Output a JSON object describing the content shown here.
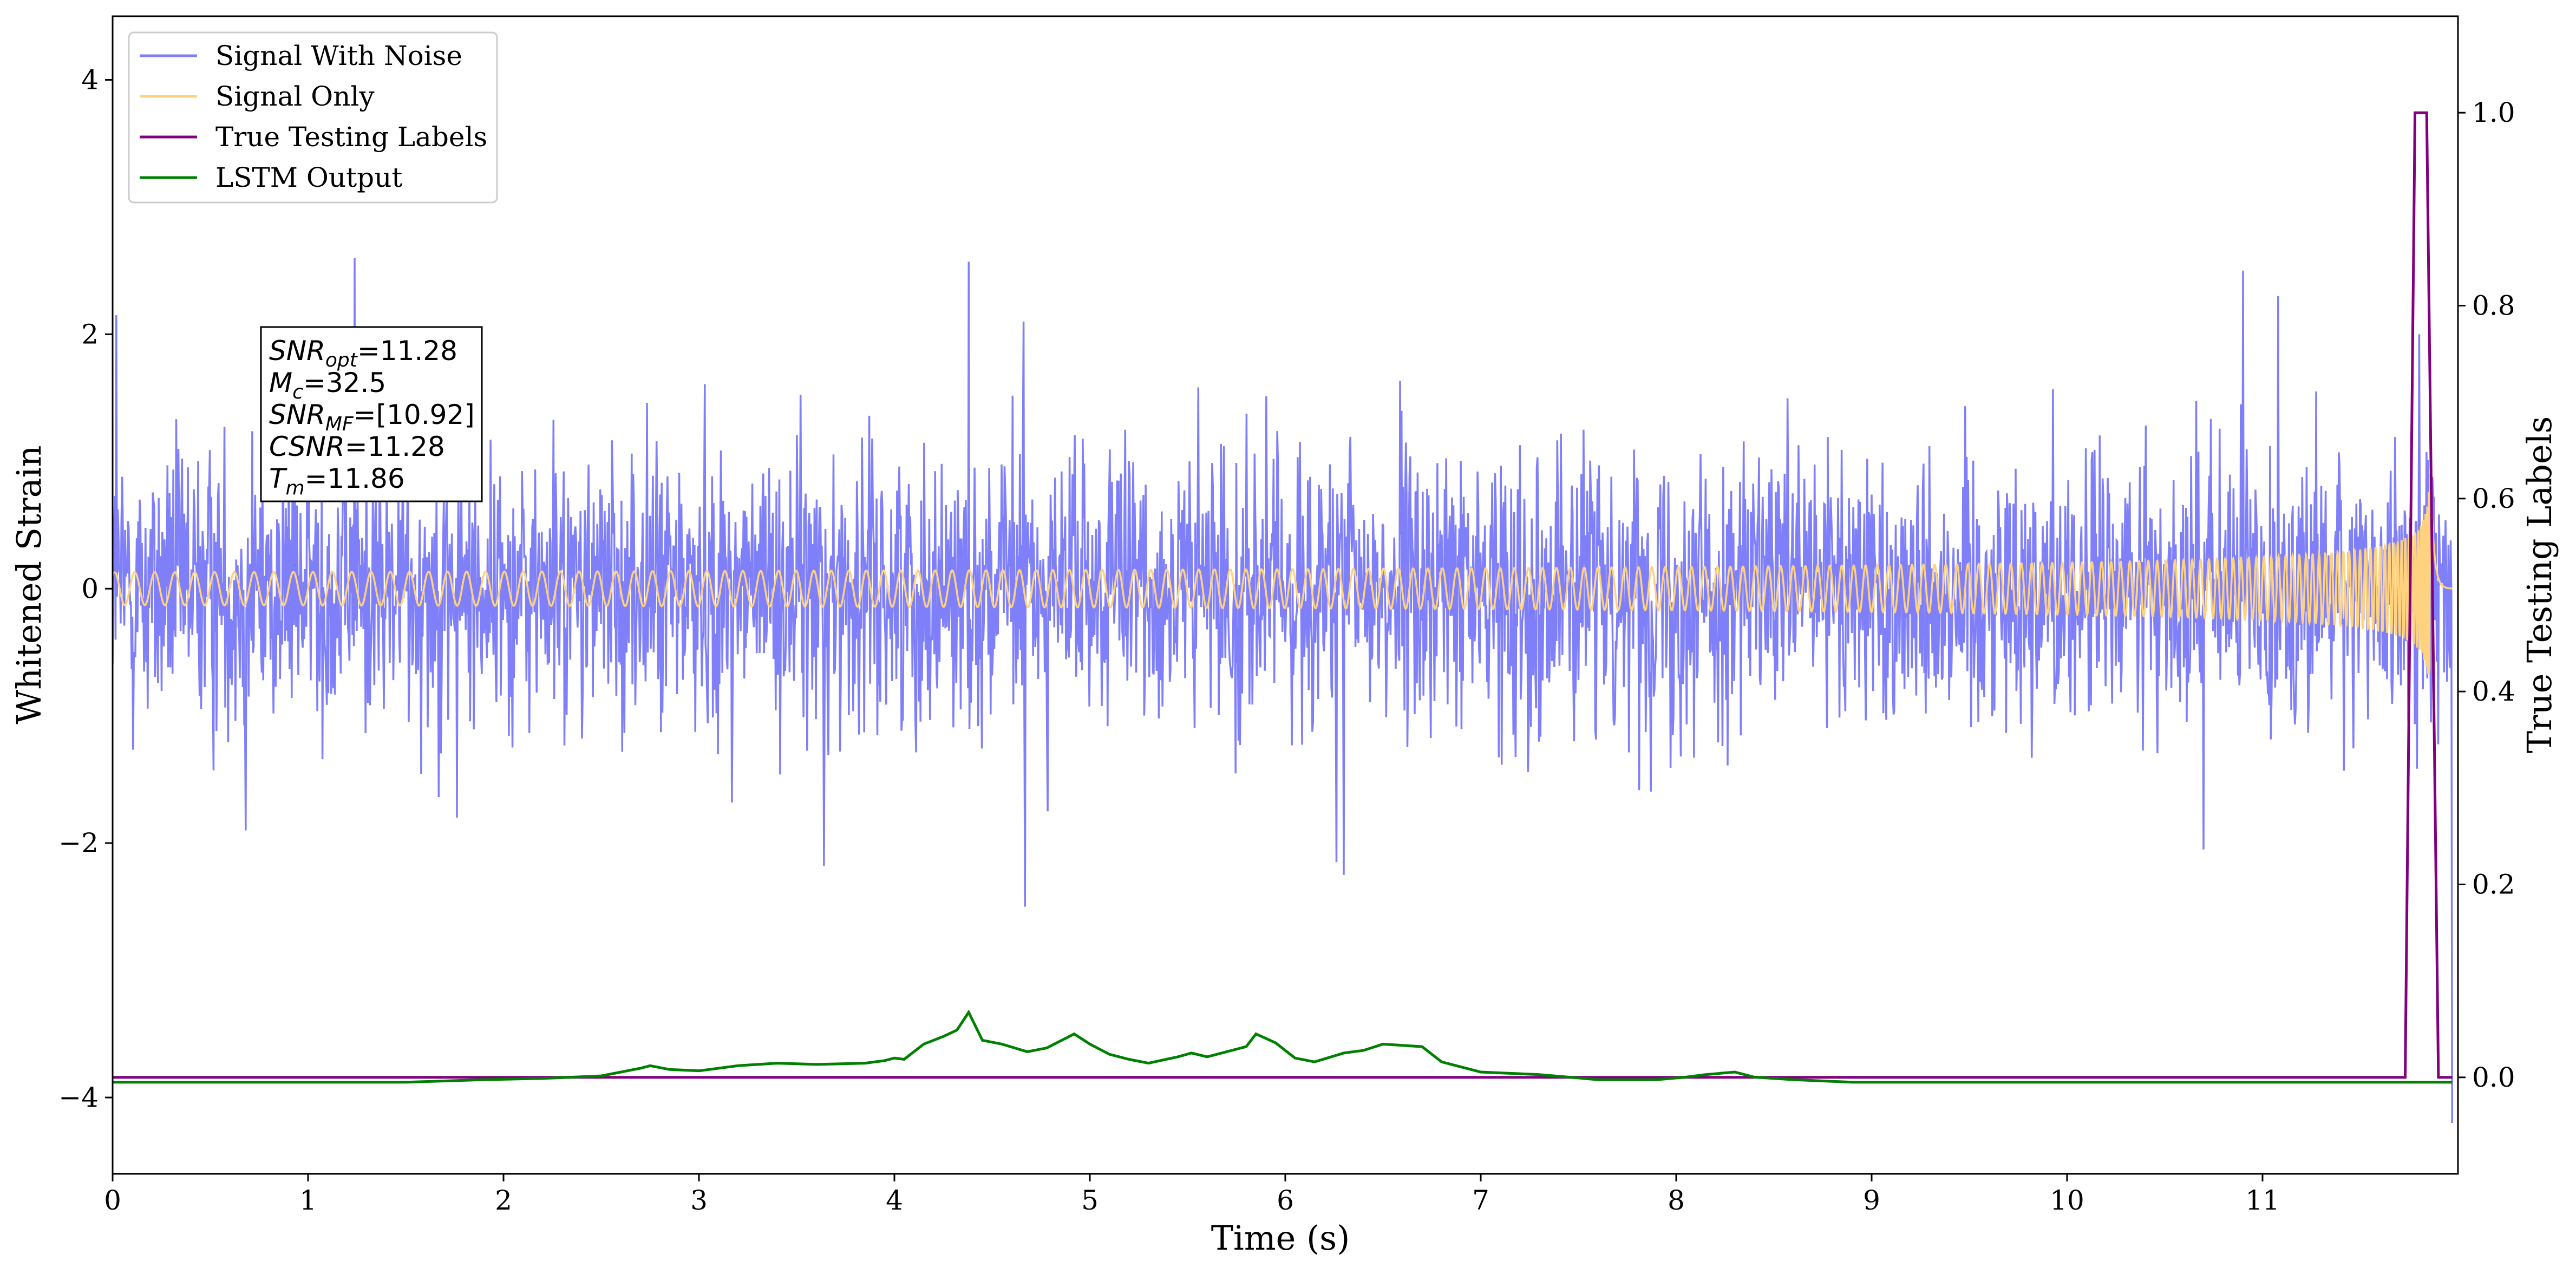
{
  "chart_data": {
    "type": "line",
    "x": {
      "label": "Time (s)",
      "range": [
        0,
        12
      ],
      "ticks": [
        0,
        1,
        2,
        3,
        4,
        5,
        6,
        7,
        8,
        9,
        10,
        11
      ],
      "tick_labels": [
        "0",
        "1",
        "2",
        "3",
        "4",
        "5",
        "6",
        "7",
        "8",
        "9",
        "10",
        "11"
      ]
    },
    "y_left": {
      "label": "Whitened Strain",
      "range": [
        -4.6,
        4.5
      ],
      "ticks": [
        -4,
        -2,
        0,
        2,
        4
      ],
      "tick_labels": [
        "−4",
        "−2",
        "0",
        "2",
        "4"
      ]
    },
    "y_right": {
      "label": "True Testing Labels",
      "range": [
        -0.1,
        1.1
      ],
      "ticks": [
        0.0,
        0.2,
        0.4,
        0.6,
        0.8,
        1.0
      ],
      "tick_labels": [
        "0.0",
        "0.2",
        "0.4",
        "0.6",
        "0.8",
        "1.0"
      ]
    },
    "legend": {
      "placement": "upper-left",
      "entries": [
        {
          "label": "Signal With Noise",
          "color": "#7f7ffa"
        },
        {
          "label": "Signal Only",
          "color": "#ffd27f"
        },
        {
          "label": "True Testing Labels",
          "color": "#800080"
        },
        {
          "label": "LSTM Output",
          "color": "#008000"
        }
      ]
    },
    "annotation": {
      "lines": [
        {
          "sym": "SNR",
          "sub": "opt",
          "rest": "=11.28"
        },
        {
          "sym": "M",
          "sub": "c",
          "rest": "=32.5"
        },
        {
          "sym": "SNR",
          "sub": "MF",
          "rest": "=[10.92]"
        },
        {
          "sym": "CSNR",
          "sub": "",
          "rest": "=11.28"
        },
        {
          "sym": "T",
          "sub": "m",
          "rest": "=11.86"
        }
      ]
    },
    "series": [
      {
        "name": "Signal With Noise",
        "axis": "left",
        "color": "#7f7ffa",
        "noise_sigma": 0.55,
        "x_end": 11.97,
        "peaks_high": [
          [
            0.02,
            2.15
          ],
          [
            1.24,
            2.6
          ],
          [
            4.38,
            2.57
          ],
          [
            4.66,
            2.1
          ],
          [
            10.9,
            2.5
          ],
          [
            11.08,
            2.3
          ],
          [
            11.8,
            2.0
          ]
        ],
        "peaks_low": [
          [
            0.68,
            -1.9
          ],
          [
            1.76,
            -1.8
          ],
          [
            3.64,
            -2.18
          ],
          [
            4.67,
            -2.5
          ],
          [
            6.26,
            -2.15
          ],
          [
            6.3,
            -2.25
          ],
          [
            10.7,
            -2.05
          ],
          [
            11.97,
            -4.2
          ]
        ]
      },
      {
        "name": "Signal Only",
        "axis": "left",
        "color": "#ffd27f",
        "chirp": {
          "t_merge": 11.86,
          "amp_max": 0.95,
          "x_end": 11.97
        }
      },
      {
        "name": "True Testing Labels",
        "axis": "right",
        "color": "#800080",
        "points": [
          [
            0,
            0
          ],
          [
            11.73,
            0
          ],
          [
            11.78,
            1.0
          ],
          [
            11.84,
            1.0
          ],
          [
            11.9,
            0
          ],
          [
            11.97,
            0
          ]
        ]
      },
      {
        "name": "LSTM Output",
        "axis": "left",
        "color": "#008000",
        "points": [
          [
            0,
            -3.88
          ],
          [
            1.5,
            -3.88
          ],
          [
            1.9,
            -3.86
          ],
          [
            2.2,
            -3.85
          ],
          [
            2.5,
            -3.83
          ],
          [
            2.7,
            -3.77
          ],
          [
            2.75,
            -3.75
          ],
          [
            2.85,
            -3.78
          ],
          [
            3.0,
            -3.79
          ],
          [
            3.2,
            -3.75
          ],
          [
            3.4,
            -3.73
          ],
          [
            3.6,
            -3.74
          ],
          [
            3.85,
            -3.73
          ],
          [
            3.95,
            -3.71
          ],
          [
            4.0,
            -3.69
          ],
          [
            4.05,
            -3.7
          ],
          [
            4.15,
            -3.58
          ],
          [
            4.25,
            -3.52
          ],
          [
            4.32,
            -3.47
          ],
          [
            4.38,
            -3.33
          ],
          [
            4.45,
            -3.55
          ],
          [
            4.55,
            -3.58
          ],
          [
            4.68,
            -3.64
          ],
          [
            4.78,
            -3.61
          ],
          [
            4.92,
            -3.5
          ],
          [
            5.0,
            -3.58
          ],
          [
            5.1,
            -3.66
          ],
          [
            5.2,
            -3.7
          ],
          [
            5.3,
            -3.73
          ],
          [
            5.45,
            -3.68
          ],
          [
            5.52,
            -3.65
          ],
          [
            5.6,
            -3.68
          ],
          [
            5.8,
            -3.6
          ],
          [
            5.85,
            -3.5
          ],
          [
            5.95,
            -3.57
          ],
          [
            6.05,
            -3.69
          ],
          [
            6.15,
            -3.72
          ],
          [
            6.3,
            -3.65
          ],
          [
            6.4,
            -3.63
          ],
          [
            6.5,
            -3.58
          ],
          [
            6.6,
            -3.59
          ],
          [
            6.7,
            -3.6
          ],
          [
            6.8,
            -3.72
          ],
          [
            7.0,
            -3.8
          ],
          [
            7.3,
            -3.82
          ],
          [
            7.6,
            -3.86
          ],
          [
            7.9,
            -3.86
          ],
          [
            8.05,
            -3.84
          ],
          [
            8.15,
            -3.82
          ],
          [
            8.3,
            -3.8
          ],
          [
            8.4,
            -3.84
          ],
          [
            8.6,
            -3.86
          ],
          [
            8.9,
            -3.88
          ],
          [
            11.97,
            -3.88
          ]
        ]
      }
    ]
  }
}
